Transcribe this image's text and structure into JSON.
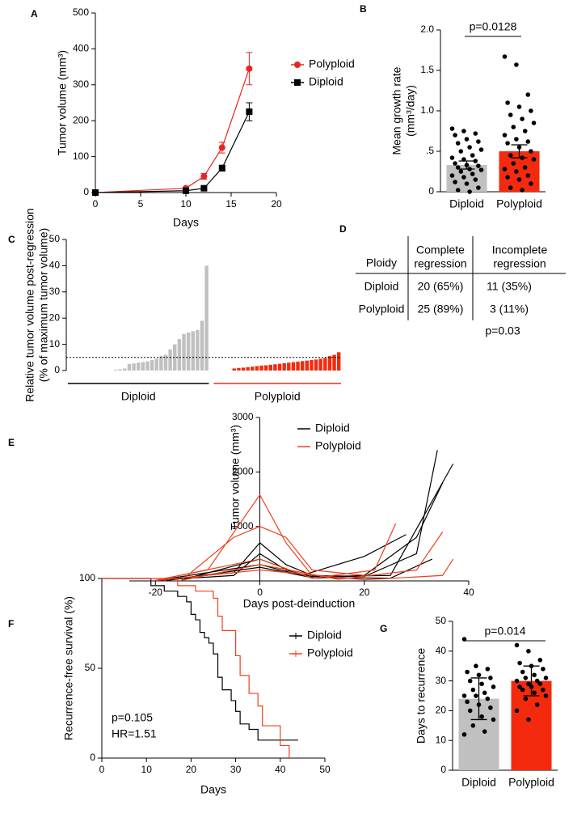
{
  "chart_data": [
    {
      "panel": "A",
      "type": "line",
      "xlabel": "Days",
      "ylabel": "Tumor volume (mm³)",
      "x": [
        0,
        10,
        12,
        14,
        17
      ],
      "xlim": [
        0,
        20
      ],
      "xticks": [
        0,
        5,
        10,
        15,
        20
      ],
      "ylim": [
        0,
        500
      ],
      "yticks": [
        0,
        100,
        200,
        300,
        400,
        500
      ],
      "series": [
        {
          "name": "Polyploid",
          "color": "#e8251f",
          "marker": "circle",
          "values": [
            0,
            12,
            45,
            125,
            345
          ],
          "errors": [
            0,
            3,
            8,
            15,
            45
          ]
        },
        {
          "name": "Diploid",
          "color": "#000000",
          "marker": "square",
          "values": [
            0,
            5,
            12,
            68,
            225
          ],
          "errors": [
            0,
            2,
            4,
            8,
            25
          ]
        }
      ]
    },
    {
      "panel": "B",
      "type": "bar",
      "ylabel": [
        "Mean growth rate",
        "(mm³/day)"
      ],
      "annotation": "p=0.0128",
      "categories": [
        "Diploid",
        "Polyploid"
      ],
      "colors": [
        "#c0c0c0",
        "#f42a0e"
      ],
      "values": [
        0.33,
        0.5
      ],
      "errors": [
        0.05,
        0.08
      ],
      "ylim": [
        0,
        2
      ],
      "yticks": [
        0,
        {
          "value": 0.5,
          "label": ".5"
        },
        {
          "value": 1,
          "label": "1.0"
        },
        1.5,
        {
          "value": 2,
          "label": "2.0"
        }
      ],
      "points": [
        [
          0.78,
          0.75,
          0.72,
          0.7,
          0.65,
          0.62,
          0.6,
          0.55,
          0.52,
          0.5,
          0.45,
          0.42,
          0.4,
          0.38,
          0.35,
          0.33,
          0.32,
          0.3,
          0.28,
          0.27,
          0.25,
          0.22,
          0.2,
          0.18,
          0.15,
          0.12,
          0.1,
          0.05,
          0.02,
          0
        ],
        [
          1.67,
          1.57,
          1.2,
          1.1,
          1.05,
          1.0,
          0.95,
          0.9,
          0.85,
          0.8,
          0.75,
          0.7,
          0.65,
          0.62,
          0.6,
          0.55,
          0.5,
          0.45,
          0.42,
          0.4,
          0.35,
          0.3,
          0.28,
          0.25,
          0.2,
          0.18,
          0.15,
          0.1,
          0.05,
          0.02
        ]
      ]
    },
    {
      "panel": "C",
      "type": "waterfall",
      "ylabel": [
        "Relative tumor volume post-regression",
        "(% of maximum tumor volume)"
      ],
      "ylim": [
        0,
        50
      ],
      "yticks": [
        0,
        10,
        20,
        30,
        40,
        50
      ],
      "threshold": 5,
      "series": [
        {
          "name": "Diploid",
          "color": "#c0c0c0",
          "line_color": "#000000",
          "values": [
            0,
            0,
            0,
            0,
            0,
            0,
            0,
            0,
            0,
            0,
            0.3,
            0.5,
            0.8,
            2.5,
            2.7,
            3,
            3.2,
            3.5,
            4,
            4.5,
            5.5,
            6,
            8,
            10,
            12,
            14,
            14.5,
            15,
            15.5,
            19,
            40
          ]
        },
        {
          "name": "Polyploid",
          "color": "#f42a0e",
          "line_color": "#f42a0e",
          "values": [
            0,
            0,
            0,
            0,
            0.8,
            1,
            1.1,
            1.3,
            1.5,
            1.7,
            1.9,
            2,
            2.2,
            2.4,
            2.6,
            2.8,
            3,
            3.2,
            3.4,
            3.6,
            3.8,
            4,
            4.2,
            4.5,
            4.8,
            5.5,
            6,
            7
          ]
        }
      ]
    },
    {
      "panel": "E",
      "type": "line",
      "xlabel": "Days post-deinduction",
      "ylabel": "Tumor volume (mm³)",
      "xlim": [
        -25,
        40
      ],
      "xticks": [
        -20,
        0,
        20,
        40
      ],
      "ylim": [
        0,
        3000
      ],
      "yticks": [
        1000,
        2000,
        3000
      ],
      "series": [
        {
          "name": "Diploid",
          "color": "#000000",
          "lines": [
            {
              "x": [
                -20,
                -5,
                0,
                5,
                10,
                20,
                30,
                34
              ],
              "values": [
                10,
                150,
                700,
                300,
                100,
                80,
                500,
                2400
              ]
            },
            {
              "x": [
                -20,
                -5,
                0,
                5,
                10,
                25,
                37
              ],
              "values": [
                10,
                100,
                500,
                200,
                80,
                100,
                2150
              ]
            },
            {
              "x": [
                -15,
                0,
                10,
                20,
                30,
                35
              ],
              "values": [
                20,
                400,
                50,
                100,
                800,
                1800
              ]
            },
            {
              "x": [
                -20,
                0,
                8,
                20,
                28
              ],
              "values": [
                5,
                300,
                100,
                450,
                850
              ]
            },
            {
              "x": [
                -18,
                0,
                10,
                25,
                33
              ],
              "values": [
                5,
                250,
                60,
                50,
                400
              ]
            }
          ]
        },
        {
          "name": "Polyploid",
          "color": "#f0401a",
          "lines": [
            {
              "x": [
                -20,
                -10,
                0,
                5,
                10
              ],
              "values": [
                10,
                200,
                1580,
                700,
                100
              ]
            },
            {
              "x": [
                -15,
                -5,
                0,
                5,
                10,
                20
              ],
              "values": [
                10,
                800,
                1000,
                800,
                200,
                100
              ]
            },
            {
              "x": [
                -20,
                0,
                10,
                22,
                26
              ],
              "values": [
                10,
                400,
                50,
                200,
                1050
              ]
            },
            {
              "x": [
                -15,
                0,
                15,
                30,
                35
              ],
              "values": [
                10,
                300,
                30,
                200,
                900
              ]
            },
            {
              "x": [
                -20,
                0,
                20,
                35,
                37
              ],
              "values": [
                5,
                200,
                20,
                100,
                400
              ]
            }
          ]
        }
      ]
    },
    {
      "panel": "F",
      "type": "step",
      "xlabel": "Days",
      "ylabel": "Recurrence-free survival (%)",
      "annotations": [
        "p=0.105",
        "HR=1.51"
      ],
      "xlim": [
        0,
        50
      ],
      "xticks": [
        0,
        10,
        20,
        30,
        40,
        50
      ],
      "ylim": [
        0,
        100
      ],
      "yticks": [
        0,
        50,
        100
      ],
      "series": [
        {
          "name": "Diploid",
          "color": "#000000",
          "x": [
            0,
            11,
            14,
            17,
            19,
            20,
            21,
            22,
            23,
            24,
            25,
            26,
            27,
            29,
            30,
            31,
            33,
            35,
            44
          ],
          "values": [
            100,
            96,
            93,
            90,
            87,
            80,
            77,
            70,
            67,
            64,
            58,
            45,
            38,
            32,
            26,
            19,
            16,
            10,
            10
          ]
        },
        {
          "name": "Polyploid",
          "color": "#f0401a",
          "x": [
            0,
            17,
            21,
            25,
            26,
            27,
            30,
            31,
            33,
            35,
            36,
            40,
            42
          ],
          "values": [
            100,
            96,
            93,
            89,
            79,
            71,
            57,
            46,
            36,
            29,
            18,
            7,
            0
          ]
        }
      ]
    },
    {
      "panel": "G",
      "type": "bar",
      "ylabel": "Days to recurrence",
      "annotation": "p=0.014",
      "categories": [
        "Diploid",
        "Polyploid"
      ],
      "colors": [
        "#c0c0c0",
        "#f42a0e"
      ],
      "values": [
        24,
        30
      ],
      "errors": [
        7,
        5
      ],
      "ylim": [
        0,
        50
      ],
      "yticks": [
        0,
        10,
        20,
        30,
        40,
        50
      ],
      "points": [
        [
          44,
          35,
          34,
          33,
          32,
          31,
          30,
          29,
          28,
          27,
          26,
          25,
          25,
          24,
          23,
          22,
          21,
          20,
          18,
          17,
          15,
          13,
          12
        ],
        [
          42,
          40,
          37,
          36,
          35,
          34,
          33,
          32,
          31,
          31,
          30,
          30,
          29,
          29,
          28,
          28,
          27,
          27,
          26,
          25,
          24,
          22,
          20,
          17
        ]
      ]
    }
  ],
  "table": {
    "panel": "D",
    "header": [
      "Ploidy",
      [
        "Complete",
        "regression"
      ],
      [
        "Incomplete",
        "regression"
      ]
    ],
    "rows": [
      [
        "Diploid",
        "20 (65%)",
        "11 (35%)"
      ],
      [
        "Polyploid",
        "25 (89%)",
        "3 (11%)"
      ]
    ],
    "note": "p=0.03"
  }
}
